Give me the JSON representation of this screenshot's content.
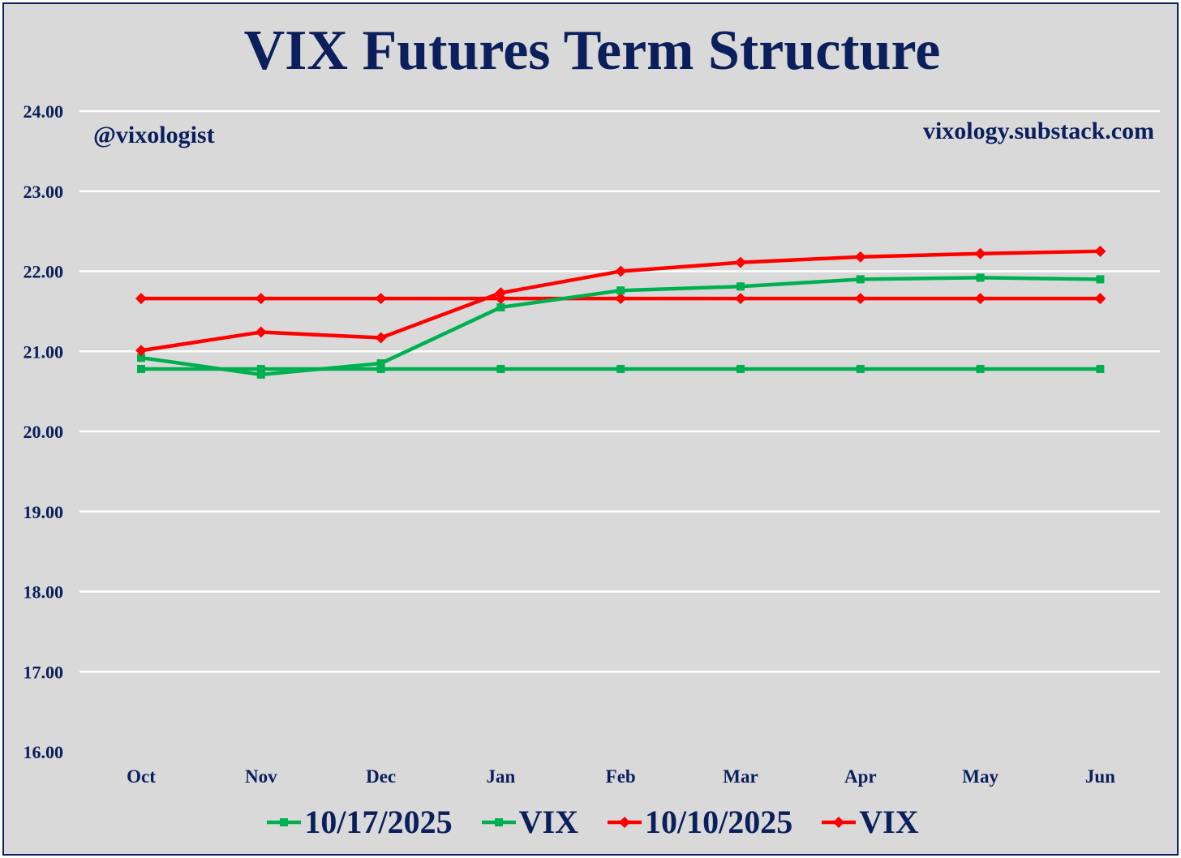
{
  "chart_data": {
    "type": "line",
    "title": "VIX Futures Term Structure",
    "annotations": {
      "handle": "@vixologist",
      "site": "vixology.substack.com"
    },
    "categories": [
      "Oct",
      "Nov",
      "Dec",
      "Jan",
      "Feb",
      "Mar",
      "Apr",
      "May",
      "Jun"
    ],
    "y_ticks": [
      "16.00",
      "17.00",
      "18.00",
      "19.00",
      "20.00",
      "21.00",
      "22.00",
      "23.00",
      "24.00"
    ],
    "ylim": [
      16,
      24
    ],
    "grid": true,
    "legend_position": "bottom",
    "series": [
      {
        "name": "10/17/2025",
        "color": "#00b050",
        "marker": "square",
        "values": [
          20.92,
          20.71,
          20.85,
          21.55,
          21.76,
          21.81,
          21.9,
          21.92,
          21.9
        ]
      },
      {
        "name": "VIX",
        "color": "#00b050",
        "marker": "square",
        "values": [
          20.78,
          20.78,
          20.78,
          20.78,
          20.78,
          20.78,
          20.78,
          20.78,
          20.78
        ]
      },
      {
        "name": "10/10/2025",
        "color": "#ff0000",
        "marker": "diamond",
        "values": [
          21.01,
          21.24,
          21.17,
          21.73,
          22.0,
          22.11,
          22.18,
          22.22,
          22.25
        ]
      },
      {
        "name": "VIX",
        "color": "#ff0000",
        "marker": "diamond",
        "values": [
          21.66,
          21.66,
          21.66,
          21.66,
          21.66,
          21.66,
          21.66,
          21.66,
          21.66
        ]
      }
    ]
  }
}
